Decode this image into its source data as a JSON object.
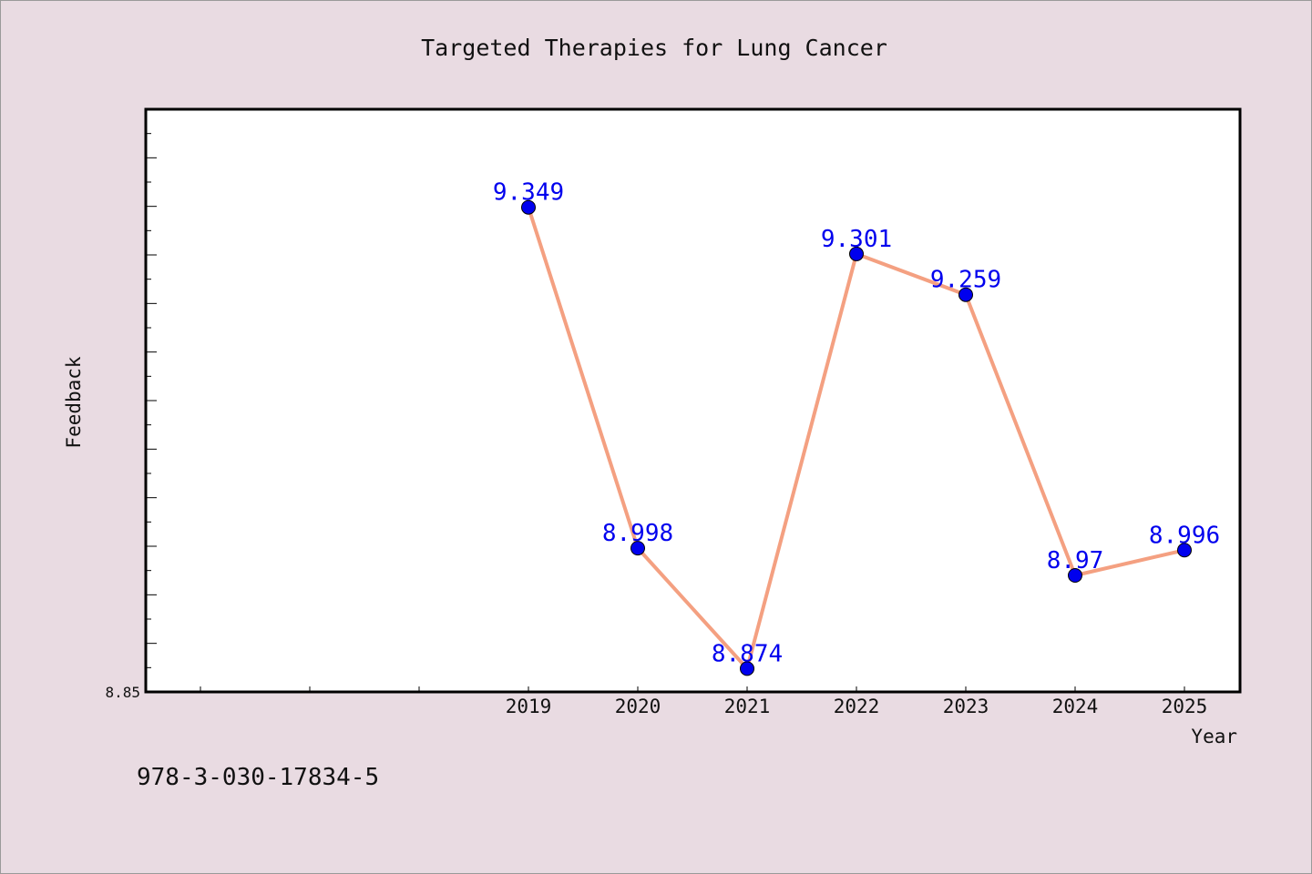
{
  "chart_data": {
    "type": "line",
    "title": "Targeted Therapies for Lung Cancer",
    "xlabel": "Year",
    "ylabel": "Feedback",
    "categories": [
      "2019",
      "2020",
      "2021",
      "2022",
      "2023",
      "2024",
      "2025"
    ],
    "series": [
      {
        "values": [
          9.349,
          8.998,
          8.874,
          9.301,
          9.259,
          8.97,
          8.996
        ]
      }
    ],
    "data_labels": [
      "9.349",
      "8.998",
      "8.874",
      "9.301",
      "9.259",
      "8.97",
      "8.996"
    ],
    "ylim": [
      8.85,
      9.45
    ],
    "y_tick_labels": [
      "8.85"
    ],
    "grid": false,
    "colors": {
      "line": "#f4a081",
      "marker": "#0000ee",
      "label": "#0000ee",
      "background": "#e9dbe2",
      "plot": "#ffffff"
    }
  },
  "footer": {
    "isbn": "978-3-030-17834-5"
  }
}
